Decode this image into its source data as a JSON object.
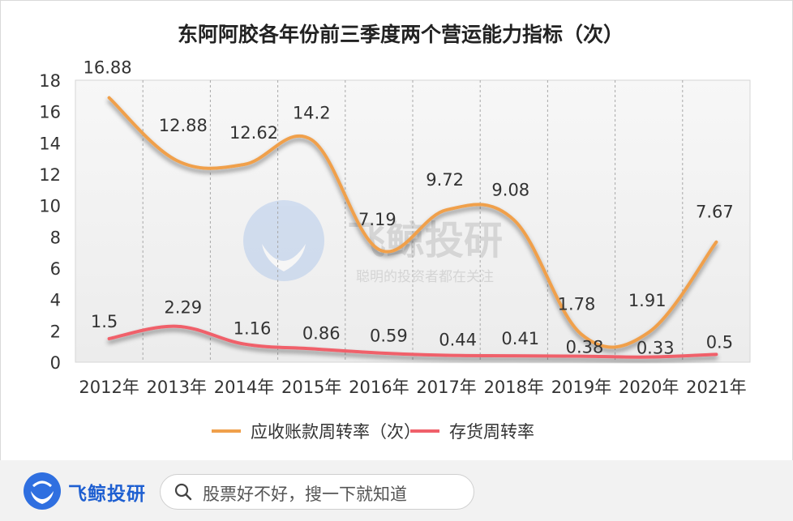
{
  "chart_data": {
    "type": "line",
    "title": "东阿阿胶各年份前三季度两个营运能力指标（次）",
    "categories": [
      "2012年",
      "2013年",
      "2014年",
      "2015年",
      "2016年",
      "2017年",
      "2018年",
      "2019年",
      "2020年",
      "2021年"
    ],
    "series": [
      {
        "name": "应收账款周转率（次）",
        "color": "#f0a04b",
        "values": [
          16.88,
          12.88,
          12.62,
          14.2,
          7.19,
          9.72,
          9.08,
          1.78,
          1.91,
          7.67
        ],
        "labels": [
          "16.88",
          "12.88",
          "12.62",
          "14.2",
          "7.19",
          "9.72",
          "9.08",
          "1.78",
          "1.91",
          "7.67"
        ]
      },
      {
        "name": "存货周转率",
        "color": "#f0606a",
        "values": [
          1.5,
          2.29,
          1.16,
          0.86,
          0.59,
          0.44,
          0.41,
          0.38,
          0.33,
          0.5
        ],
        "labels": [
          "1.5",
          "2.29",
          "1.16",
          "0.86",
          "0.59",
          "0.44",
          "0.41",
          "0.38",
          "0.33",
          "0.5"
        ]
      }
    ],
    "yticks": [
      "0",
      "2",
      "4",
      "6",
      "8",
      "10",
      "12",
      "14",
      "16",
      "18"
    ],
    "ylim": [
      0,
      18
    ],
    "grid": "vertical dashed",
    "legend": "bottom"
  },
  "watermark": {
    "name": "飞鲸投研",
    "slogan": "聪明的投资者都在关注"
  },
  "footer": {
    "brand": "飞鲸投研",
    "search_placeholder": "股票好不好，搜一下就知道"
  }
}
